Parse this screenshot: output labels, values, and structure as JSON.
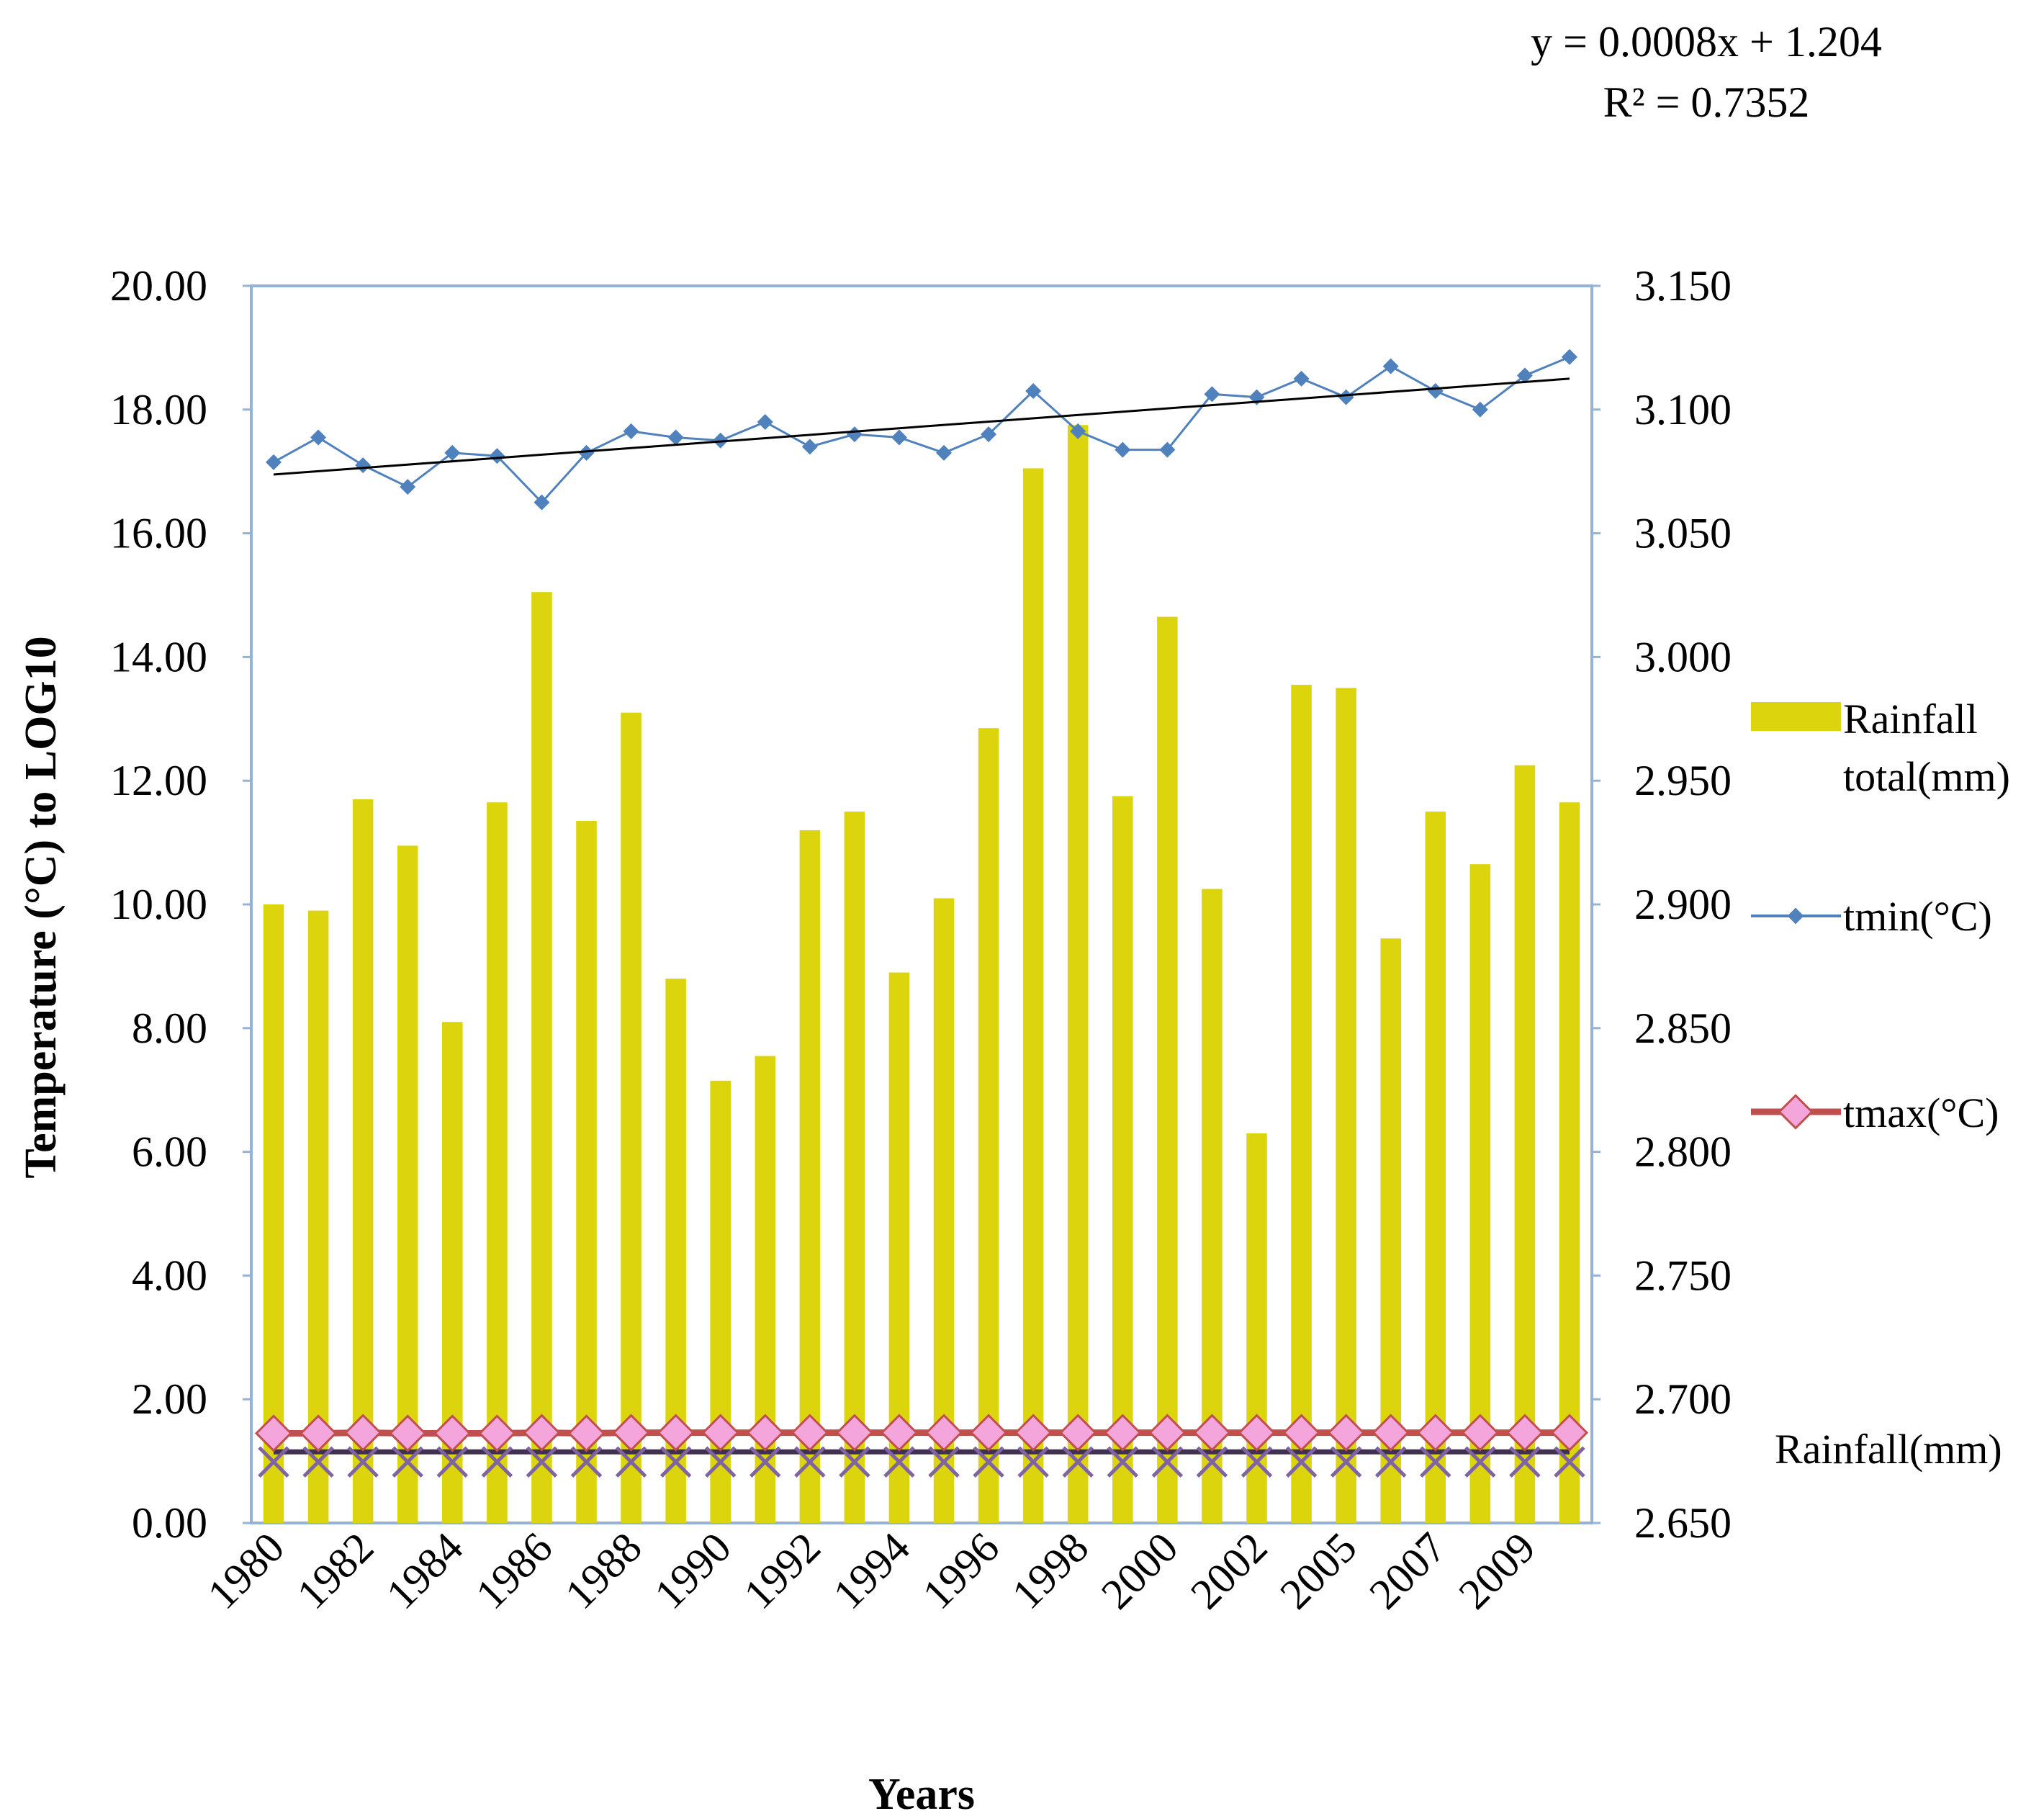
{
  "chart_data": {
    "type": "bar",
    "x_label": "Years",
    "y_left_label": "Temperature (°C)  to LOG10",
    "y_left_range": [
      0,
      20
    ],
    "y_left_ticks": [
      "0.00",
      "2.00",
      "4.00",
      "6.00",
      "8.00",
      "10.00",
      "12.00",
      "14.00",
      "16.00",
      "18.00",
      "20.00"
    ],
    "y_right_range": [
      2.65,
      3.15
    ],
    "y_right_ticks": [
      "2.650",
      "2.700",
      "2.750",
      "2.800",
      "2.850",
      "2.900",
      "2.950",
      "3.000",
      "3.050",
      "3.100",
      "3.150"
    ],
    "x_tick_labels": [
      "1980",
      "1982",
      "1984",
      "1986",
      "1988",
      "1990",
      "1992",
      "1994",
      "1996",
      "1998",
      "2000",
      "2002",
      "2005",
      "2007",
      "2009"
    ],
    "categories": [
      "1980",
      "1981",
      "1982",
      "1983",
      "1984",
      "1985",
      "1986",
      "1987",
      "1988",
      "1989",
      "1990",
      "1991",
      "1992",
      "1993",
      "1994",
      "1995",
      "1996",
      "1997",
      "1998",
      "1999",
      "2000",
      "2001",
      "2002",
      "2004",
      "2005",
      "2006",
      "2007",
      "2008",
      "2009",
      "2010"
    ],
    "series": [
      {
        "name": "Rainfall total(mm)",
        "type": "bar",
        "axis": "left",
        "color": "#dcd40c",
        "values": [
          10.0,
          9.9,
          11.7,
          10.95,
          8.1,
          11.65,
          15.05,
          11.35,
          13.1,
          8.8,
          7.15,
          7.55,
          11.2,
          11.5,
          8.9,
          10.1,
          12.85,
          17.05,
          17.75,
          11.75,
          14.65,
          10.25,
          6.3,
          13.55,
          13.5,
          9.45,
          11.5,
          10.65,
          12.25,
          11.65
        ]
      },
      {
        "name": "tmin(°C)",
        "type": "line",
        "axis": "left",
        "color": "#4f81bd",
        "values": [
          17.15,
          17.55,
          17.1,
          16.75,
          17.3,
          17.25,
          16.5,
          17.3,
          17.65,
          17.55,
          17.5,
          17.8,
          17.4,
          17.6,
          17.55,
          17.3,
          17.6,
          18.3,
          17.65,
          17.35,
          17.35,
          18.25,
          18.2,
          18.5,
          18.2,
          18.7,
          18.3,
          18.0,
          18.55,
          18.85
        ]
      },
      {
        "name": "tmax(°C)",
        "type": "line",
        "axis": "left",
        "color": "#c0504d",
        "marker_color": "#f4a6dc",
        "values": [
          1.45,
          1.45,
          1.46,
          1.45,
          1.45,
          1.45,
          1.46,
          1.45,
          1.46,
          1.46,
          1.46,
          1.46,
          1.46,
          1.46,
          1.46,
          1.46,
          1.46,
          1.46,
          1.46,
          1.46,
          1.46,
          1.46,
          1.46,
          1.46,
          1.46,
          1.46,
          1.46,
          1.46,
          1.46,
          1.46
        ]
      },
      {
        "name": "Rainfall(mm)",
        "type": "line",
        "axis": "left",
        "color": "#403152",
        "marker_color": "#8064a2",
        "values": [
          1.15,
          1.15,
          1.15,
          1.15,
          1.15,
          1.15,
          1.15,
          1.15,
          1.15,
          1.15,
          1.15,
          1.15,
          1.15,
          1.15,
          1.15,
          1.15,
          1.15,
          1.15,
          1.15,
          1.15,
          1.15,
          1.15,
          1.15,
          1.15,
          1.15,
          1.15,
          1.15,
          1.15,
          1.15,
          1.15
        ]
      }
    ],
    "trendline": {
      "series": "tmin(°C)",
      "start": 16.95,
      "end": 18.5,
      "equation": "y = 0.0008x + 1.204",
      "r_squared": "R² = 0.7352",
      "color": "#000000"
    },
    "legend": [
      "Rainfall",
      "total(mm)",
      "tmin(°C)",
      "tmax(°C)",
      "Rainfall(mm)"
    ],
    "legend_position": "right",
    "frame_color": "#95b3d7"
  }
}
